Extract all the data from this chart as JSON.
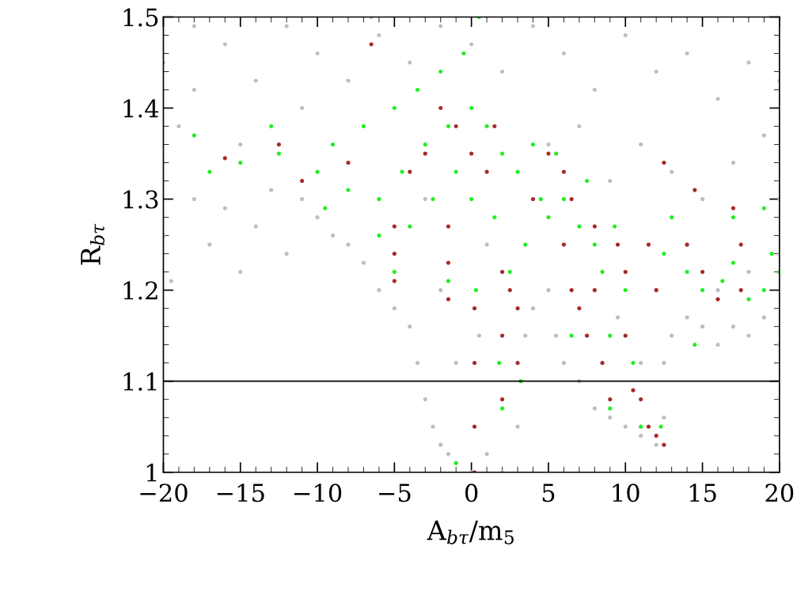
{
  "chart_data": {
    "type": "scatter",
    "xlabel": "A$_{bτ}$/m$_{5}$",
    "ylabel": "R$_{bτ}$",
    "xlim": [
      -20,
      20
    ],
    "ylim": [
      1,
      1.5
    ],
    "xticks": [
      {
        "value": -20,
        "label": "−20"
      },
      {
        "value": -15,
        "label": "−15"
      },
      {
        "value": -10,
        "label": "−10"
      },
      {
        "value": -5,
        "label": "−5"
      },
      0,
      5,
      10,
      15,
      20
    ],
    "yticks": [
      1,
      1.1,
      1.2,
      1.3,
      1.4,
      1.5
    ],
    "grid": false,
    "marker": "circle",
    "ref_lines": [
      {
        "axis": "y",
        "value": 1.1,
        "color": "#000000",
        "line_style": "solid"
      }
    ],
    "series": [
      {
        "color": "#bebebe",
        "x": [
          -20,
          -19,
          -18,
          -16,
          -15,
          -14,
          -12,
          -11,
          -10,
          -8,
          -6,
          -4,
          -2,
          0,
          2,
          4,
          6,
          8,
          10,
          12,
          14,
          16,
          18,
          20,
          19,
          17,
          15,
          13,
          11,
          9,
          7,
          5,
          -20,
          -19.5,
          -18,
          -17,
          -16,
          -15,
          -14,
          -13,
          -12,
          -11,
          -10,
          -9,
          -8,
          -7,
          -6,
          -5,
          -4,
          -3.5,
          -3,
          -2.5,
          -2,
          -1.5,
          0,
          1,
          2,
          3,
          3.5,
          4,
          5,
          5.5,
          6,
          7,
          8,
          9,
          10,
          11,
          12,
          12.5,
          12.5,
          13,
          14,
          15,
          16,
          17,
          18,
          19,
          20,
          20,
          -1,
          -2,
          0.5,
          1,
          -3,
          9.5,
          11,
          12,
          14,
          16,
          18,
          20,
          -18,
          -6.5
        ],
        "values": [
          1.45,
          1.38,
          1.42,
          1.47,
          1.36,
          1.43,
          1.49,
          1.4,
          1.46,
          1.43,
          1.48,
          1.45,
          1.49,
          1.47,
          1.44,
          1.49,
          1.46,
          1.42,
          1.48,
          1.44,
          1.46,
          1.41,
          1.45,
          1.43,
          1.37,
          1.34,
          1.3,
          1.33,
          1.36,
          1.32,
          1.38,
          1.36,
          1.26,
          1.21,
          1.3,
          1.25,
          1.29,
          1.22,
          1.27,
          1.31,
          1.24,
          1.3,
          1.28,
          1.26,
          1.25,
          1.23,
          1.2,
          1.18,
          1.16,
          1.12,
          1.08,
          1.05,
          1.03,
          1.02,
          1.0,
          1.02,
          1.0,
          1.05,
          1.15,
          1.18,
          1.2,
          1.15,
          1.12,
          1.1,
          1.07,
          1.06,
          1.05,
          1.04,
          1.03,
          1.06,
          1.12,
          1.15,
          1.17,
          1.16,
          1.14,
          1.16,
          1.15,
          1.17,
          1.14,
          1.24,
          1.12,
          1.2,
          1.15,
          1.25,
          1.3,
          1.17,
          1.12,
          1.2,
          1.25,
          1.2,
          1.22,
          1.3,
          1.49,
          1.5
        ]
      },
      {
        "color": "#22ee22",
        "x": [
          -18,
          -17,
          -15,
          -13,
          -12.5,
          -10,
          -9,
          -8,
          -7,
          -6,
          -5,
          -4.5,
          -4,
          -3.5,
          -3,
          -2.5,
          -2,
          -1.5,
          -1,
          -0.5,
          0,
          0,
          0.3,
          0.5,
          1,
          1.5,
          2,
          2.5,
          3,
          3.5,
          4,
          4.5,
          5,
          5.5,
          6,
          7,
          7.5,
          8,
          8.5,
          9,
          9.3,
          10,
          10.5,
          11,
          12.3,
          12.5,
          13,
          14,
          15,
          16.3,
          17,
          18,
          19,
          19.5,
          20,
          17,
          19,
          2,
          1.8,
          3.2,
          -5,
          -1.5,
          6.5,
          9,
          -1,
          -9.5,
          -6,
          14.5
        ],
        "values": [
          1.37,
          1.33,
          1.34,
          1.38,
          1.35,
          1.33,
          1.36,
          1.31,
          1.38,
          1.3,
          1.4,
          1.33,
          1.27,
          1.42,
          1.36,
          1.3,
          1.44,
          1.38,
          1.33,
          1.46,
          1.4,
          1.3,
          1.2,
          1.5,
          1.38,
          1.28,
          1.35,
          1.22,
          1.33,
          1.25,
          1.36,
          1.3,
          1.28,
          1.35,
          1.3,
          1.27,
          1.32,
          1.25,
          1.22,
          1.15,
          1.27,
          1.2,
          1.12,
          1.05,
          1.05,
          1.24,
          1.28,
          1.22,
          1.2,
          1.21,
          1.23,
          1.19,
          1.2,
          1.24,
          1.22,
          1.28,
          1.29,
          1.07,
          1.12,
          1.1,
          1.22,
          1.21,
          1.15,
          1.07,
          1.01,
          1.29,
          1.26,
          1.14
        ]
      },
      {
        "color": "#a52a2a",
        "x": [
          -16,
          -12.5,
          -11,
          -8,
          -6.5,
          -5,
          -5,
          -5,
          -4,
          -3,
          -2,
          -1.5,
          -1.5,
          -1.5,
          -1,
          0,
          0.2,
          0.2,
          0.2,
          0.2,
          1,
          1.5,
          2,
          2,
          2,
          2.5,
          3,
          3,
          6,
          6,
          6.5,
          6.5,
          7,
          7.5,
          8,
          8,
          8.5,
          9,
          9.5,
          10,
          10,
          10.5,
          11,
          11.5,
          12,
          12.5,
          12.5,
          11.5,
          12,
          14,
          15,
          16,
          17.5,
          17,
          17.5,
          14.5,
          4,
          5
        ],
        "values": [
          1.345,
          1.36,
          1.32,
          1.34,
          1.47,
          1.27,
          1.24,
          1.21,
          1.33,
          1.35,
          1.4,
          1.27,
          1.23,
          1.19,
          1.38,
          1.35,
          1.18,
          1.12,
          1.0,
          1.05,
          1.33,
          1.38,
          1.22,
          1.15,
          1.08,
          1.2,
          1.18,
          1.12,
          1.33,
          1.25,
          1.3,
          1.2,
          1.18,
          1.15,
          1.27,
          1.2,
          1.12,
          1.08,
          1.25,
          1.22,
          1.15,
          1.09,
          1.08,
          1.05,
          1.04,
          1.03,
          1.34,
          1.25,
          1.2,
          1.25,
          1.22,
          1.19,
          1.25,
          1.29,
          1.2,
          1.31,
          1.3,
          1.35
        ]
      }
    ]
  }
}
